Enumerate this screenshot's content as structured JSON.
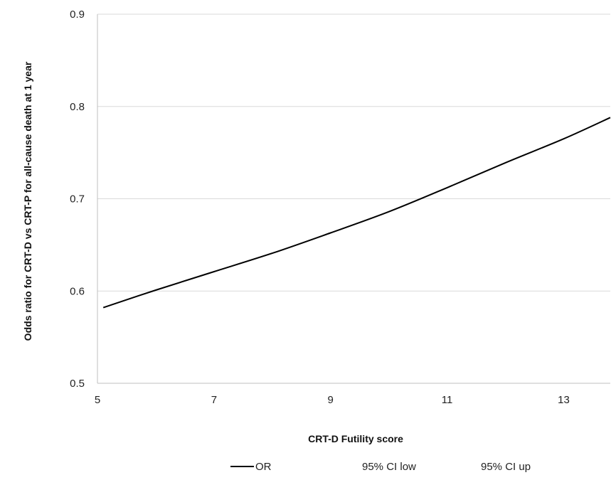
{
  "chart_data": {
    "type": "line",
    "xlabel": "CRT-D Futility score",
    "ylabel": "Odds ratio for CRT-D vs CRT-P for all-cause death at 1 year",
    "xlim": [
      5,
      13.8
    ],
    "ylim": [
      0.5,
      0.9
    ],
    "x_ticks": [
      "5",
      "7",
      "9",
      "11",
      "13"
    ],
    "y_ticks": [
      "0.5",
      "0.6",
      "0.7",
      "0.8",
      "0.9"
    ],
    "grid": "horizontal",
    "legend_position": "bottom",
    "series": [
      {
        "name": "OR",
        "color": "#000000",
        "x": [
          5.1,
          6,
          7,
          8,
          9,
          10,
          11,
          12,
          13,
          13.8
        ],
        "y": [
          0.582,
          0.601,
          0.621,
          0.641,
          0.663,
          0.686,
          0.712,
          0.739,
          0.765,
          0.788
        ]
      },
      {
        "name": "95% CI low",
        "color": "#ffffff",
        "x": [],
        "y": []
      },
      {
        "name": "95% CI up",
        "color": "#ffffff",
        "x": [],
        "y": []
      }
    ]
  }
}
